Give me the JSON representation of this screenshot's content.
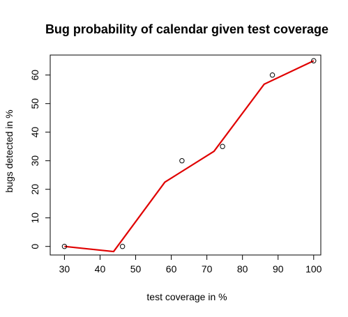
{
  "chart_data": {
    "type": "scatter",
    "title": "Bug probability of calendar given test coverage",
    "xlabel": "test coverage in %",
    "ylabel": "bugs detected in %",
    "xlim": [
      26,
      102
    ],
    "ylim": [
      -3,
      67
    ],
    "x_ticks": [
      30,
      40,
      50,
      60,
      70,
      80,
      90,
      100
    ],
    "y_ticks": [
      0,
      10,
      20,
      30,
      40,
      50,
      60
    ],
    "grid": false,
    "series": [
      {
        "kind": "points",
        "marker": "open-circle",
        "color": "#000000",
        "x": [
          30,
          46.3,
          63,
          74.4,
          88.4,
          100
        ],
        "y": [
          0,
          0,
          30,
          35,
          60,
          65
        ]
      },
      {
        "kind": "line",
        "color": "#e00000",
        "x": [
          30,
          43.8,
          58.2,
          72,
          86.1,
          100
        ],
        "y": [
          0,
          -1.8,
          22.5,
          33.3,
          56.8,
          65
        ]
      }
    ]
  }
}
